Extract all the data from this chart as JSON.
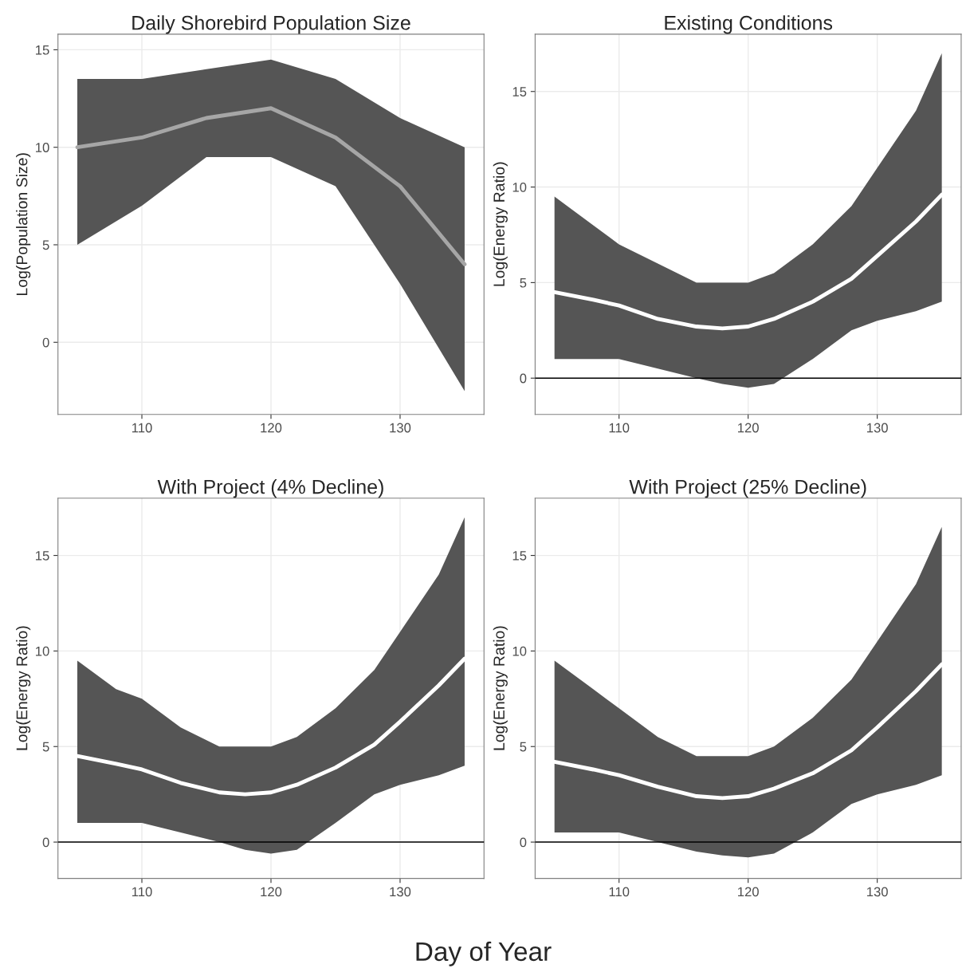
{
  "chart_data": [
    {
      "type": "line",
      "title": "Daily Shorebird Population Size",
      "ylabel": "Log(Population Size)",
      "xlim": [
        103.5,
        136.5
      ],
      "xticks": [
        110,
        120,
        130
      ],
      "ylim": [
        -3.7,
        15.8
      ],
      "yticks": [
        0,
        5,
        10,
        15
      ],
      "grid": true,
      "series": [
        {
          "color": "#a6a6a6",
          "x": [
            105,
            110,
            115,
            120,
            125,
            130,
            135
          ],
          "values": [
            10,
            10.5,
            11.5,
            12,
            10.5,
            8,
            4
          ],
          "lower": [
            5,
            7,
            9.5,
            9.5,
            8,
            3,
            -2.5
          ],
          "upper": [
            13.5,
            13.5,
            14,
            14.5,
            13.5,
            11.5,
            10
          ]
        }
      ]
    },
    {
      "type": "line",
      "title": "Existing Conditions",
      "ylabel": "Log(Energy Ratio)",
      "xlim": [
        103.5,
        136.5
      ],
      "xticks": [
        110,
        120,
        130
      ],
      "ylim": [
        -1.9,
        18
      ],
      "yticks": [
        0,
        5,
        10,
        15
      ],
      "grid": true,
      "ref_lines": [
        {
          "axis": "y",
          "value": 0,
          "color": "#000000"
        }
      ],
      "series": [
        {
          "color": "#ffffff",
          "x": [
            105,
            108,
            110,
            113,
            116,
            118,
            120,
            122,
            125,
            128,
            130,
            133,
            135
          ],
          "values": [
            4.5,
            4.1,
            3.8,
            3.1,
            2.7,
            2.6,
            2.7,
            3.1,
            4.0,
            5.2,
            6.4,
            8.2,
            9.6
          ],
          "lower": [
            1,
            1,
            1,
            0.5,
            0,
            -0.3,
            -0.5,
            -0.3,
            1,
            2.5,
            3,
            3.5,
            4
          ],
          "upper": [
            9.5,
            8,
            7,
            6,
            5,
            5,
            5,
            5.5,
            7,
            9,
            11,
            14,
            17
          ]
        }
      ]
    },
    {
      "type": "line",
      "title": "With Project (4% Decline)",
      "ylabel": "Log(Energy Ratio)",
      "xlabel": "Day of Year",
      "xlim": [
        103.5,
        136.5
      ],
      "xticks": [
        110,
        120,
        130
      ],
      "ylim": [
        -1.9,
        18
      ],
      "yticks": [
        0,
        5,
        10,
        15
      ],
      "grid": true,
      "ref_lines": [
        {
          "axis": "y",
          "value": 0,
          "color": "#000000"
        }
      ],
      "series": [
        {
          "color": "#ffffff",
          "x": [
            105,
            108,
            110,
            113,
            116,
            118,
            120,
            122,
            125,
            128,
            130,
            133,
            135
          ],
          "values": [
            4.5,
            4.1,
            3.8,
            3.1,
            2.6,
            2.5,
            2.6,
            3.0,
            3.9,
            5.1,
            6.3,
            8.2,
            9.6
          ],
          "lower": [
            1,
            1,
            1,
            0.5,
            0,
            -0.4,
            -0.6,
            -0.4,
            1,
            2.5,
            3,
            3.5,
            4
          ],
          "upper": [
            9.5,
            8,
            7.5,
            6,
            5,
            5,
            5,
            5.5,
            7,
            9,
            11,
            14,
            17
          ]
        }
      ]
    },
    {
      "type": "line",
      "title": "With Project (25% Decline)",
      "ylabel": "Log(Energy Ratio)",
      "xlim": [
        103.5,
        136.5
      ],
      "xticks": [
        110,
        120,
        130
      ],
      "ylim": [
        -1.9,
        18
      ],
      "yticks": [
        0,
        5,
        10,
        15
      ],
      "grid": true,
      "ref_lines": [
        {
          "axis": "y",
          "value": 0,
          "color": "#000000"
        }
      ],
      "series": [
        {
          "color": "#ffffff",
          "x": [
            105,
            108,
            110,
            113,
            116,
            118,
            120,
            122,
            125,
            128,
            130,
            133,
            135
          ],
          "values": [
            4.2,
            3.8,
            3.5,
            2.9,
            2.4,
            2.3,
            2.4,
            2.8,
            3.6,
            4.8,
            6.0,
            7.9,
            9.3
          ],
          "lower": [
            0.5,
            0.5,
            0.5,
            0,
            -0.5,
            -0.7,
            -0.8,
            -0.6,
            0.5,
            2,
            2.5,
            3,
            3.5
          ],
          "upper": [
            9.5,
            8,
            7,
            5.5,
            4.5,
            4.5,
            4.5,
            5,
            6.5,
            8.5,
            10.5,
            13.5,
            16.5
          ]
        }
      ]
    }
  ]
}
